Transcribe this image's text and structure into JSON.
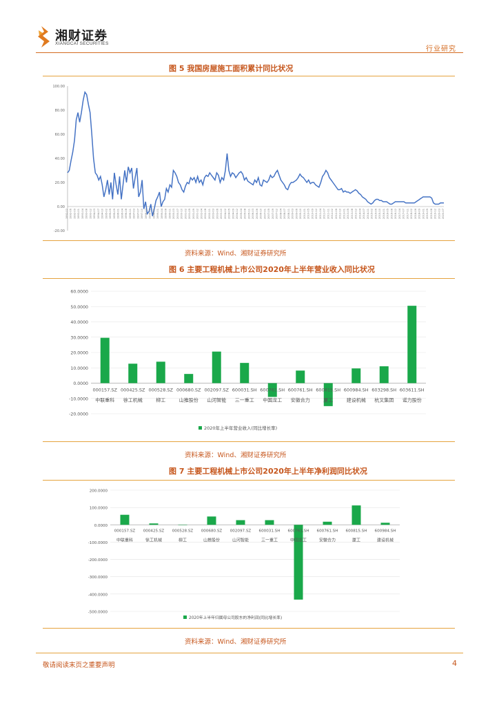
{
  "header": {
    "brand_cn": "湘财证券",
    "brand_en": "XIANGCAI SECURITIES",
    "section": "行业研究",
    "colors": {
      "accent": "#d46a1e",
      "title": "#c6561c",
      "rule": "#e5a23c"
    }
  },
  "figures": {
    "fig5": {
      "title": "图 5 我国房屋施工面积累计同比状况",
      "source": "资料来源：Wind、湘财证券研究所"
    },
    "fig6": {
      "title": "图 6 主要工程机械上市公司2020年上半年营业收入同比状况",
      "source": "资料来源：Wind、湘财证券研究所"
    },
    "fig7": {
      "title": "图 7 主要工程机械上市公司2020年上半年净利润同比状况",
      "source": "资料来源：Wind、湘财证券研究所"
    }
  },
  "chart_data": [
    {
      "type": "line",
      "title": "",
      "y_ticks": [
        "100.00",
        "80.00",
        "60.00",
        "40.00",
        "20.00",
        "0.00",
        "-20.00"
      ],
      "ylim": [
        -20,
        100
      ],
      "grid": false,
      "x_start": "1992-02",
      "x_end": "2020-07",
      "series": [
        {
          "values": [
            28,
            30,
            38,
            45,
            55,
            72,
            78,
            70,
            78,
            88,
            95,
            93,
            85,
            78,
            60,
            40,
            28,
            26,
            22,
            25,
            18,
            8,
            14,
            22,
            10,
            20,
            6,
            28,
            18,
            10,
            25,
            6,
            18,
            30,
            20,
            33,
            28,
            32,
            15,
            24,
            32,
            8,
            12,
            22,
            -2,
            4,
            -6,
            -4,
            2,
            -8,
            -2,
            5,
            8,
            12,
            0,
            4,
            6,
            15,
            12,
            18,
            16,
            30,
            28,
            25,
            20,
            18,
            14,
            12,
            17,
            20,
            19,
            24,
            22,
            24,
            20,
            25,
            20,
            22,
            18,
            24,
            26,
            25,
            28,
            26,
            24,
            22,
            28,
            26,
            20,
            24,
            22,
            30,
            44,
            30,
            25,
            28,
            27,
            24,
            26,
            28,
            29,
            27,
            22,
            24,
            21,
            20,
            19,
            18,
            22,
            20,
            24,
            18,
            17,
            22,
            21,
            20,
            22,
            26,
            24,
            25,
            28,
            30,
            26,
            22,
            20,
            18,
            15,
            14,
            18,
            20,
            20,
            21,
            22,
            24,
            27,
            25,
            24,
            22,
            20,
            22,
            19,
            20,
            20,
            18,
            17,
            16,
            20,
            25,
            27,
            30,
            28,
            24,
            22,
            20,
            18,
            16,
            14,
            14,
            15,
            12,
            13,
            12,
            12,
            11,
            12,
            13,
            14,
            13,
            11,
            10,
            8,
            7,
            6,
            4,
            3,
            2,
            3,
            5,
            6,
            6,
            5,
            5,
            4,
            4,
            4,
            3,
            2,
            2,
            3,
            4,
            4,
            4,
            4,
            4,
            4,
            3,
            3,
            3,
            3,
            3,
            3,
            4,
            5,
            6,
            7,
            8,
            8,
            8,
            8,
            8,
            7,
            3,
            2,
            2,
            2,
            3,
            3,
            3
          ]
        }
      ]
    },
    {
      "type": "bar",
      "title": "",
      "y_ticks": [
        "60.0000",
        "50.0000",
        "40.0000",
        "30.0000",
        "20.0000",
        "10.0000",
        "0.0000",
        "-10.0000",
        "-20.0000"
      ],
      "ylim": [
        -20,
        60
      ],
      "categories": [
        "000157.SZ 中联重科",
        "000425.SZ 徐工机械",
        "000528.SZ 柳工",
        "000680.SZ 山推股份",
        "002097.SZ 山河智能",
        "600031.SH 三一重工",
        "600761.SH 中国龙工",
        "600761.SH 安徽合力",
        "600815.SH 厦工",
        "600984.SH 建设机械",
        "603298.SH 杭叉集团",
        "603611.SH 诺力股份"
      ],
      "tick_labels": [
        "000157.SZ",
        "000425.SZ",
        "000528.SZ",
        "000680.SZ",
        "002097.SZ",
        "600031.SH",
        "600761.SH",
        "600761.SH",
        "600815.SH",
        "600984.SH",
        "603298.SH",
        "603611.SH"
      ],
      "company_labels": [
        "中联重科",
        "徐工机械",
        "柳工",
        "山推股份",
        "山河智能",
        "三一重工",
        "中国龙工",
        "安徽合力",
        "厦工",
        "建设机械",
        "杭叉集团",
        "诺力股份"
      ],
      "series": [
        {
          "name": "2020年上半年营业收入(同比增长率)",
          "values": [
            29.6,
            12.7,
            14.0,
            6.0,
            20.6,
            13.2,
            -9.0,
            8.2,
            -15.0,
            9.6,
            11.0,
            50.5
          ],
          "color": "#1aa84a"
        }
      ],
      "legend_position": "bottom"
    },
    {
      "type": "bar",
      "title": "",
      "y_ticks": [
        "200.0000",
        "100.0000",
        "0.0000",
        "-100.0000",
        "-200.0000",
        "-300.0000",
        "-400.0000",
        "-500.0000"
      ],
      "ylim": [
        -500,
        200
      ],
      "categories": [
        "000157.SZ 中联重科",
        "000425.SZ 徐工机械",
        "000528.SZ 柳工",
        "000680.SZ 山推股份",
        "002097.SZ 山河智能",
        "600031.SH 三一重工",
        "600761.SH 中国龙工",
        "600761.SH 安徽合力",
        "600815.SH 厦工",
        "600984.SH 建设机械"
      ],
      "tick_labels": [
        "000157.SZ",
        "000425.SZ",
        "000528.SZ",
        "000680.SZ",
        "002097.SZ",
        "600031.SH",
        "600761.SH",
        "600761.SH",
        "600815.SH",
        "600984.SH"
      ],
      "company_labels": [
        "中联重科",
        "徐工机械",
        "柳工",
        "山推股份",
        "山河智能",
        "三一重工",
        "中国龙工",
        "安徽合力",
        "厦工",
        "建设机械"
      ],
      "series": [
        {
          "name": "2020年上半年归属母公司股东的净利润(同比增长率)",
          "values": [
            58,
            8,
            0,
            48,
            27,
            27,
            -432,
            18,
            112,
            12
          ],
          "color": "#1aa84a"
        }
      ],
      "legend_position": "bottom"
    }
  ],
  "footer": {
    "notice": "敬请阅读末页之重要声明",
    "page": "4"
  }
}
